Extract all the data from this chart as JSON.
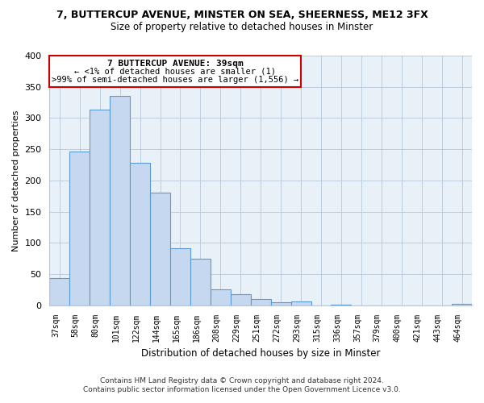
{
  "title": "7, BUTTERCUP AVENUE, MINSTER ON SEA, SHEERNESS, ME12 3FX",
  "subtitle": "Size of property relative to detached houses in Minster",
  "xlabel": "Distribution of detached houses by size in Minster",
  "ylabel": "Number of detached properties",
  "bar_labels": [
    "37sqm",
    "58sqm",
    "80sqm",
    "101sqm",
    "122sqm",
    "144sqm",
    "165sqm",
    "186sqm",
    "208sqm",
    "229sqm",
    "251sqm",
    "272sqm",
    "293sqm",
    "315sqm",
    "336sqm",
    "357sqm",
    "379sqm",
    "400sqm",
    "421sqm",
    "443sqm",
    "464sqm"
  ],
  "bar_values": [
    43,
    246,
    313,
    335,
    228,
    180,
    91,
    75,
    25,
    18,
    10,
    5,
    6,
    0,
    1,
    0,
    0,
    0,
    0,
    0,
    2
  ],
  "bar_color": "#c5d8ef",
  "bar_edge_color": "#5b9bd5",
  "ylim": [
    0,
    400
  ],
  "yticks": [
    0,
    50,
    100,
    150,
    200,
    250,
    300,
    350,
    400
  ],
  "annotation_line1": "7 BUTTERCUP AVENUE: 39sqm",
  "annotation_line2": "← <1% of detached houses are smaller (1)",
  "annotation_line3": ">99% of semi-detached houses are larger (1,556) →",
  "footer_line1": "Contains HM Land Registry data © Crown copyright and database right 2024.",
  "footer_line2": "Contains public sector information licensed under the Open Government Licence v3.0.",
  "plot_bg_color": "#e8f0f8",
  "fig_bg_color": "#ffffff",
  "grid_color": "#b8c8d8"
}
